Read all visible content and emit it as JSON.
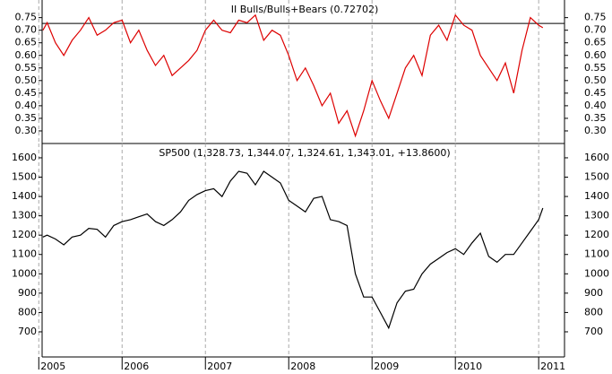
{
  "chart_data": [
    {
      "type": "line",
      "title": "II Bulls/Bulls+Bears (0.72702)",
      "reference": 0.72702,
      "color": "#dd0000",
      "x": [
        2005.05,
        2005.1,
        2005.2,
        2005.3,
        2005.4,
        2005.5,
        2005.6,
        2005.7,
        2005.8,
        2005.9,
        2006.0,
        2006.1,
        2006.2,
        2006.3,
        2006.4,
        2006.5,
        2006.6,
        2006.7,
        2006.8,
        2006.9,
        2007.0,
        2007.1,
        2007.2,
        2007.3,
        2007.4,
        2007.5,
        2007.6,
        2007.7,
        2007.8,
        2007.9,
        2008.0,
        2008.1,
        2008.2,
        2008.3,
        2008.4,
        2008.5,
        2008.6,
        2008.7,
        2008.8,
        2008.9,
        2009.0,
        2009.1,
        2009.2,
        2009.3,
        2009.4,
        2009.5,
        2009.6,
        2009.7,
        2009.8,
        2009.9,
        2010.0,
        2010.1,
        2010.2,
        2010.3,
        2010.4,
        2010.5,
        2010.6,
        2010.7,
        2010.8,
        2010.9,
        2011.0,
        2011.05
      ],
      "values": [
        0.7,
        0.73,
        0.65,
        0.6,
        0.66,
        0.7,
        0.75,
        0.68,
        0.7,
        0.73,
        0.74,
        0.65,
        0.7,
        0.62,
        0.56,
        0.6,
        0.52,
        0.55,
        0.58,
        0.62,
        0.7,
        0.74,
        0.7,
        0.69,
        0.74,
        0.73,
        0.76,
        0.66,
        0.7,
        0.68,
        0.6,
        0.5,
        0.55,
        0.48,
        0.4,
        0.45,
        0.33,
        0.38,
        0.28,
        0.38,
        0.5,
        0.42,
        0.35,
        0.45,
        0.55,
        0.6,
        0.52,
        0.68,
        0.72,
        0.66,
        0.76,
        0.72,
        0.7,
        0.6,
        0.55,
        0.5,
        0.57,
        0.45,
        0.62,
        0.75,
        0.72,
        0.71
      ],
      "xlim": [
        2005.04,
        2011.31
      ],
      "xticks": [
        2005,
        2006,
        2007,
        2008,
        2009,
        2010,
        2011
      ],
      "ylim": [
        0.25,
        0.82
      ],
      "yticks": [
        {
          "value": 0.3,
          "label": "0.30"
        },
        0.35,
        {
          "value": 0.4,
          "label": "0.40"
        },
        0.45,
        {
          "value": 0.5,
          "label": "0.50"
        },
        0.55,
        {
          "value": 0.6,
          "label": "0.60"
        },
        0.65,
        {
          "value": 0.7,
          "label": "0.70"
        },
        0.75
      ],
      "grid": true
    },
    {
      "type": "line",
      "title": "SP500 (1,328.73, 1,344.07, 1,324.61, 1,343.01, +13.8600)",
      "color": "#000000",
      "x": [
        2005.05,
        2005.1,
        2005.2,
        2005.3,
        2005.4,
        2005.5,
        2005.6,
        2005.7,
        2005.8,
        2005.9,
        2006.0,
        2006.1,
        2006.2,
        2006.3,
        2006.4,
        2006.5,
        2006.6,
        2006.7,
        2006.8,
        2006.9,
        2007.0,
        2007.1,
        2007.2,
        2007.3,
        2007.4,
        2007.5,
        2007.6,
        2007.7,
        2007.8,
        2007.9,
        2008.0,
        2008.1,
        2008.2,
        2008.3,
        2008.4,
        2008.5,
        2008.6,
        2008.7,
        2008.8,
        2008.9,
        2009.0,
        2009.1,
        2009.2,
        2009.3,
        2009.4,
        2009.5,
        2009.6,
        2009.7,
        2009.8,
        2009.9,
        2010.0,
        2010.1,
        2010.2,
        2010.3,
        2010.4,
        2010.5,
        2010.6,
        2010.7,
        2010.8,
        2010.9,
        2011.0,
        2011.05
      ],
      "values": [
        1190,
        1200,
        1180,
        1150,
        1190,
        1200,
        1235,
        1230,
        1190,
        1250,
        1270,
        1280,
        1295,
        1310,
        1270,
        1250,
        1280,
        1320,
        1380,
        1410,
        1430,
        1440,
        1400,
        1480,
        1530,
        1520,
        1460,
        1530,
        1500,
        1470,
        1380,
        1350,
        1320,
        1390,
        1400,
        1280,
        1270,
        1250,
        1000,
        880,
        880,
        800,
        720,
        850,
        910,
        920,
        1000,
        1050,
        1080,
        1110,
        1130,
        1100,
        1160,
        1210,
        1090,
        1060,
        1100,
        1100,
        1160,
        1220,
        1280,
        1340
      ],
      "xlim": [
        2005.04,
        2011.31
      ],
      "xticks": [
        2005,
        2006,
        2007,
        2008,
        2009,
        2010,
        2011
      ],
      "ylim": [
        570,
        1674
      ],
      "yticks": [
        700,
        800,
        900,
        1000,
        1100,
        1200,
        1300,
        1400,
        1500,
        1600
      ],
      "grid": true
    }
  ]
}
